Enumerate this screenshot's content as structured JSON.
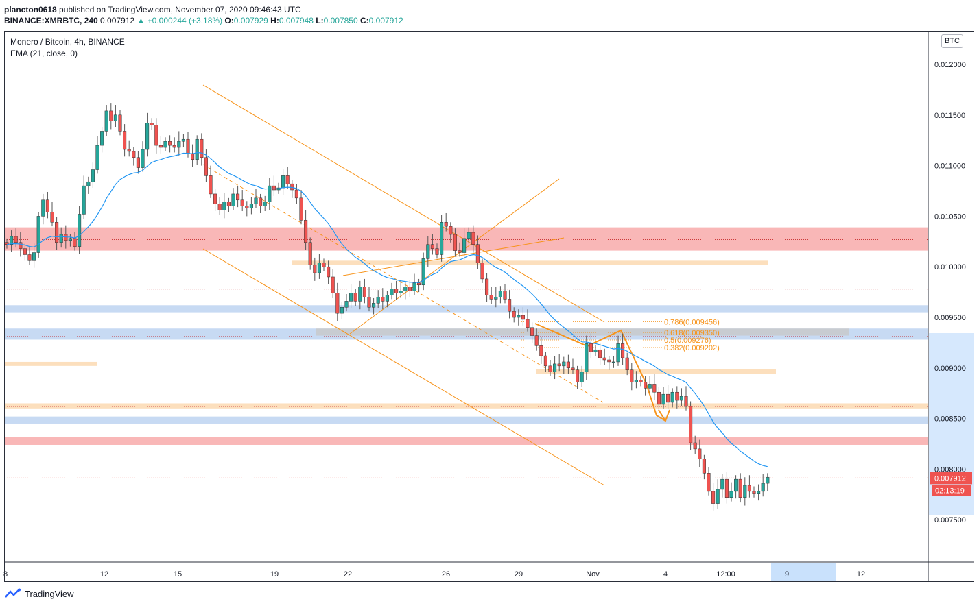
{
  "header": {
    "author": "plancton0618",
    "published_text": " published on TradingView.com, November 07, 2020 09:46:43 UTC",
    "symbol": "BINANCE:XMRBTC, 240",
    "last": "0.007912",
    "change": "▲ +0.000244 (+3.18%)",
    "o_label": "O:",
    "o": "0.007929",
    "h_label": "H:",
    "h": "0.007948",
    "l_label": "L:",
    "l": "0.007850",
    "c_label": "C:",
    "c": "0.007912"
  },
  "legend": {
    "title": "Monero / Bitcoin, 4h, BINANCE",
    "indicator": "EMA (21, close, 0)"
  },
  "currency_badge": "BTC",
  "footer": {
    "brand": "TradingView"
  },
  "colors": {
    "up": "#26a69a",
    "down": "#ef5350",
    "ema": "#2196f3",
    "orange": "#f7931a",
    "resistance": "#f8a5a5",
    "support": "#bdd3f1",
    "zone": "#fcd9b1",
    "grey_zone": "#c8c8c8"
  },
  "chart_data": {
    "type": "candlestick",
    "title": "Monero / Bitcoin, 4h, BINANCE",
    "y_ticks": [
      "0.012000",
      "0.011500",
      "0.011000",
      "0.010500",
      "0.010000",
      "0.009500",
      "0.009000",
      "0.008500",
      "0.008000",
      "0.007500"
    ],
    "ylim": [
      0.0071,
      0.0122
    ],
    "x_ticks": [
      "8",
      "12",
      "15",
      "19",
      "22",
      "26",
      "29",
      "Nov",
      "4",
      "12:00",
      "9",
      "12"
    ],
    "last_price_label": "0.007912",
    "countdown_label": "02:13:19",
    "fib_levels": [
      {
        "label": "0.786(0.009456)",
        "value": 0.009456
      },
      {
        "label": "0.618(0.009350)",
        "value": 0.00935
      },
      {
        "label": "0.5(0.009276)",
        "value": 0.009276
      },
      {
        "label": "0.382(0.009202)",
        "value": 0.009202
      }
    ],
    "zones": [
      {
        "kind": "resistance",
        "from": 0.01016,
        "to": 0.01039
      },
      {
        "kind": "support",
        "from": 0.00955,
        "to": 0.00962
      },
      {
        "kind": "support",
        "from": 0.00928,
        "to": 0.00939
      },
      {
        "kind": "resistance",
        "from": 0.00824,
        "to": 0.00832
      },
      {
        "kind": "support",
        "from": 0.00845,
        "to": 0.00852
      },
      {
        "kind": "zone",
        "from": 0.01002,
        "to": 0.01006
      },
      {
        "kind": "zone",
        "from": 0.00894,
        "to": 0.00899
      },
      {
        "kind": "zone",
        "from": 0.00902,
        "to": 0.00906
      },
      {
        "kind": "zone",
        "from": 0.0086,
        "to": 0.00865
      }
    ],
    "close": [
      0.01022,
      0.0103,
      0.01024,
      0.01018,
      0.01012,
      0.01006,
      0.01014,
      0.0105,
      0.01066,
      0.01054,
      0.01044,
      0.01024,
      0.01032,
      0.01026,
      0.01028,
      0.0102,
      0.01052,
      0.0108,
      0.01084,
      0.01096,
      0.0112,
      0.01134,
      0.01154,
      0.01144,
      0.0115,
      0.01134,
      0.01116,
      0.01114,
      0.01108,
      0.01098,
      0.01116,
      0.01142,
      0.0114,
      0.0112,
      0.01118,
      0.01124,
      0.0112,
      0.01118,
      0.01124,
      0.01126,
      0.01112,
      0.01106,
      0.01126,
      0.01108,
      0.0109,
      0.01072,
      0.01062,
      0.01056,
      0.01064,
      0.0106,
      0.01072,
      0.01066,
      0.0106,
      0.01058,
      0.01062,
      0.01068,
      0.0106,
      0.01064,
      0.0108,
      0.01076,
      0.01078,
      0.0109,
      0.01082,
      0.01076,
      0.01068,
      0.01046,
      0.01024,
      0.01002,
      0.00994,
      0.01004,
      0.01,
      0.0099,
      0.00974,
      0.00954,
      0.0096,
      0.00966,
      0.00974,
      0.00966,
      0.0098,
      0.0097,
      0.0096,
      0.00964,
      0.0097,
      0.00966,
      0.00972,
      0.00978,
      0.00974,
      0.00976,
      0.0098,
      0.00976,
      0.00984,
      0.00982,
      0.01008,
      0.01022,
      0.01018,
      0.01012,
      0.01044,
      0.0104,
      0.01032,
      0.01016,
      0.01014,
      0.01028,
      0.01034,
      0.01022,
      0.01004,
      0.00988,
      0.00972,
      0.00968,
      0.0097,
      0.00976,
      0.00968,
      0.00956,
      0.0095,
      0.00952,
      0.00948,
      0.0094,
      0.00932,
      0.00922,
      0.00912,
      0.00902,
      0.00896,
      0.00904,
      0.00902,
      0.00906,
      0.009,
      0.00898,
      0.00886,
      0.00896,
      0.00924,
      0.00916,
      0.00918,
      0.0091,
      0.00908,
      0.00906,
      0.00906,
      0.00924,
      0.0091,
      0.00898,
      0.00886,
      0.00888,
      0.00886,
      0.0088,
      0.00884,
      0.00876,
      0.00864,
      0.00874,
      0.00866,
      0.00876,
      0.00868,
      0.00872,
      0.00862,
      0.00826,
      0.0082,
      0.0081,
      0.00796,
      0.00778,
      0.00766,
      0.0078,
      0.0079,
      0.00772,
      0.00778,
      0.0079,
      0.00772,
      0.00784,
      0.00778,
      0.00776,
      0.00778,
      0.00786,
      0.00792
    ]
  }
}
